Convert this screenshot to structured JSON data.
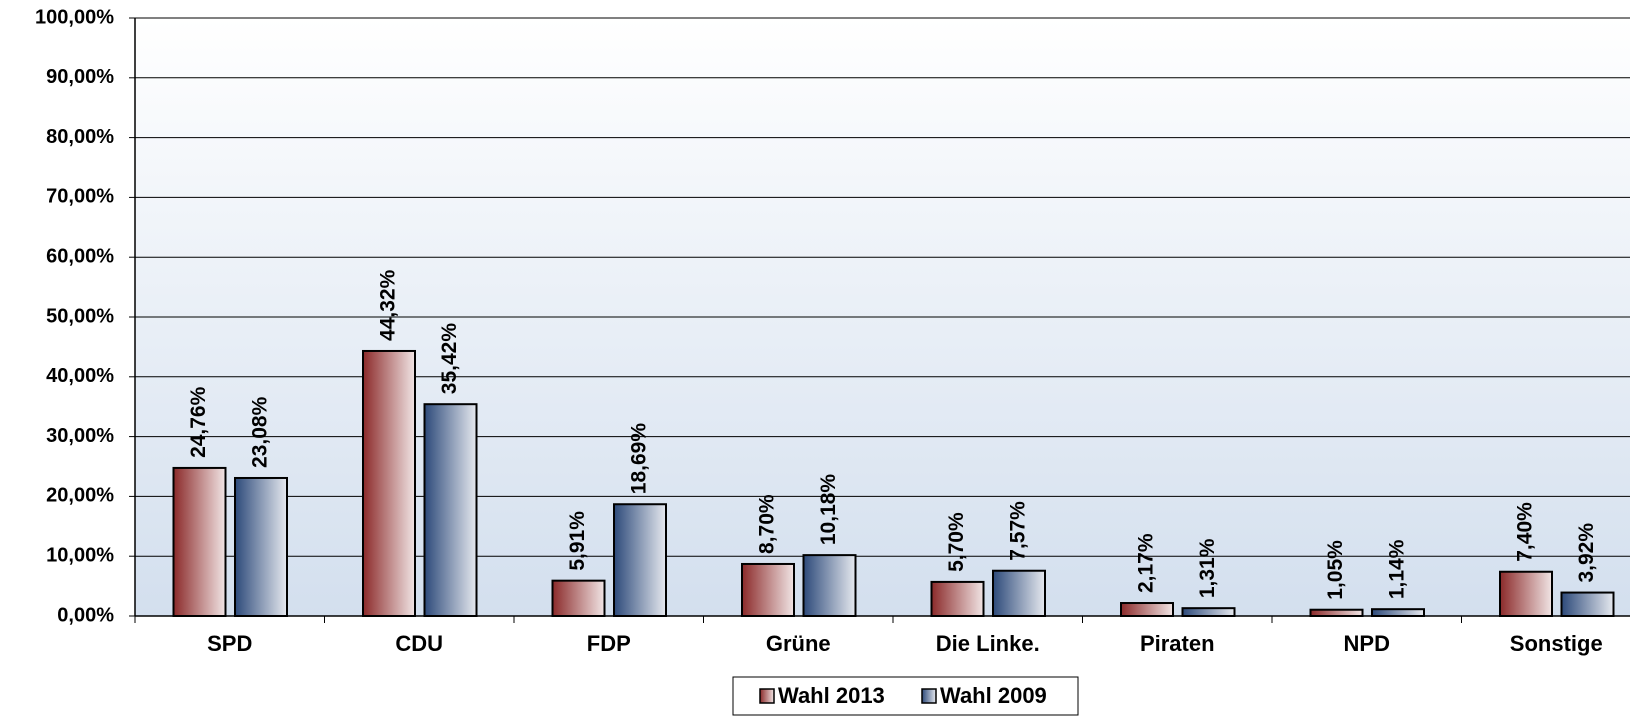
{
  "chart_data": {
    "type": "bar",
    "categories": [
      "SPD",
      "CDU",
      "FDP",
      "Grüne",
      "Die Linke.",
      "Piraten",
      "NPD",
      "Sonstige"
    ],
    "series": [
      {
        "name": "Wahl 2013",
        "color": "#8b2a2a",
        "values": [
          24.76,
          44.32,
          5.91,
          8.7,
          5.7,
          2.17,
          1.05,
          7.4
        ],
        "value_labels": [
          "24,76%",
          "44,32%",
          "5,91%",
          "8,70%",
          "5,70%",
          "2,17%",
          "1,05%",
          "7,40%"
        ]
      },
      {
        "name": "Wahl 2009",
        "color": "#2d4a7a",
        "values": [
          23.08,
          35.42,
          18.69,
          10.18,
          7.57,
          1.31,
          1.14,
          3.92
        ],
        "value_labels": [
          "23,08%",
          "35,42%",
          "18,69%",
          "10,18%",
          "7,57%",
          "1,31%",
          "1,14%",
          "3,92%"
        ]
      }
    ],
    "ylim": [
      0,
      100
    ],
    "yticks": [
      {
        "value": 0,
        "label": "0,00%"
      },
      {
        "value": 10,
        "label": "10,00%"
      },
      {
        "value": 20,
        "label": "20,00%"
      },
      {
        "value": 30,
        "label": "30,00%"
      },
      {
        "value": 40,
        "label": "40,00%"
      },
      {
        "value": 50,
        "label": "50,00%"
      },
      {
        "value": 60,
        "label": "60,00%"
      },
      {
        "value": 70,
        "label": "70,00%"
      },
      {
        "value": 80,
        "label": "80,00%"
      },
      {
        "value": 90,
        "label": "90,00%"
      },
      {
        "value": 100,
        "label": "100,00%"
      }
    ],
    "grid": true,
    "legend": "bottom"
  }
}
